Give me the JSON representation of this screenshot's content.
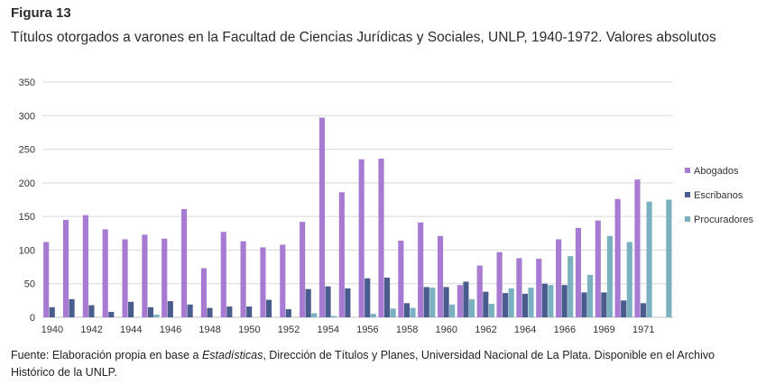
{
  "figure": {
    "label": "Figura 13",
    "title": "Títulos otorgados a varones en la Facultad de Ciencias Jurídicas y Sociales, UNLP, 1940-1972. Valores absolutos"
  },
  "source": {
    "prefix": "Fuente: Elaboración propia en base a ",
    "emphasis": "Estadísticas",
    "suffix": ", Dirección de Títulos y Planes, Universidad Nacional de La Plata. Disponible en el Archivo Histórico de la UNLP."
  },
  "chart_data": {
    "type": "bar",
    "title": "",
    "xlabel": "",
    "ylabel": "",
    "ylim": [
      0,
      350
    ],
    "yticks": [
      0,
      50,
      100,
      150,
      200,
      250,
      300,
      350
    ],
    "grid": true,
    "legend_position": "right",
    "categories": [
      "1940",
      "1941",
      "1942",
      "1943",
      "1944",
      "1945",
      "1946",
      "1947",
      "1948",
      "1949",
      "1950",
      "1951",
      "1952",
      "1953",
      "1954",
      "1955",
      "1956",
      "1957",
      "1958",
      "1959",
      "1960",
      "1961",
      "1962",
      "1963",
      "1964",
      "1965",
      "1966",
      "1968",
      "1969",
      "1970",
      "1971",
      "1972"
    ],
    "tick_labels": [
      "1940",
      "",
      "1942",
      "",
      "1944",
      "",
      "1946",
      "",
      "1948",
      "",
      "1950",
      "",
      "1952",
      "",
      "1954",
      "",
      "1956",
      "",
      "1958",
      "",
      "1960",
      "",
      "1962",
      "",
      "1964",
      "",
      "1966",
      "",
      "1969",
      "",
      "1971",
      ""
    ],
    "series": [
      {
        "name": "Abogados",
        "color": "#a77bd1",
        "values": [
          112,
          145,
          152,
          131,
          116,
          123,
          117,
          161,
          73,
          127,
          113,
          104,
          108,
          142,
          297,
          186,
          235,
          236,
          114,
          141,
          121,
          48,
          77,
          97,
          88,
          87,
          116,
          133,
          144,
          176,
          205,
          0
        ]
      },
      {
        "name": "Escribanos",
        "color": "#4a5c8e",
        "values": [
          15,
          27,
          18,
          8,
          23,
          15,
          24,
          19,
          14,
          16,
          16,
          26,
          12,
          42,
          46,
          43,
          58,
          59,
          21,
          45,
          45,
          53,
          38,
          36,
          35,
          50,
          48,
          37,
          37,
          25,
          21,
          0
        ]
      },
      {
        "name": "Procuradores",
        "color": "#7ab0c0",
        "values": [
          0,
          0,
          0,
          0,
          0,
          4,
          0,
          0,
          0,
          0,
          0,
          0,
          0,
          6,
          2,
          0,
          5,
          13,
          14,
          44,
          19,
          27,
          20,
          43,
          44,
          48,
          91,
          63,
          121,
          112,
          172,
          175
        ]
      }
    ]
  }
}
